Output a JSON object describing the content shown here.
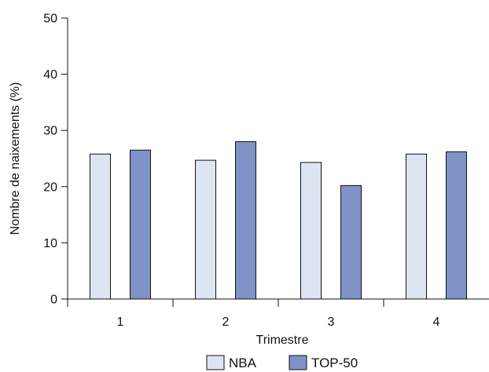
{
  "chart_data": {
    "type": "bar",
    "xlabel": "Trimestre",
    "ylabel": "Nombre de naixements (%)",
    "categories": [
      "1",
      "2",
      "3",
      "4"
    ],
    "ylim": [
      0,
      50
    ],
    "yticks": [
      0,
      10,
      20,
      30,
      40,
      50
    ],
    "grid": false,
    "legend_position": "bottom",
    "series": [
      {
        "name": "NBA",
        "values": [
          25.8,
          24.7,
          24.3,
          25.8
        ],
        "color": "#dde5f2"
      },
      {
        "name": "TOP-50",
        "values": [
          26.5,
          28.0,
          20.2,
          26.2
        ],
        "color": "#7f93c8"
      }
    ]
  }
}
